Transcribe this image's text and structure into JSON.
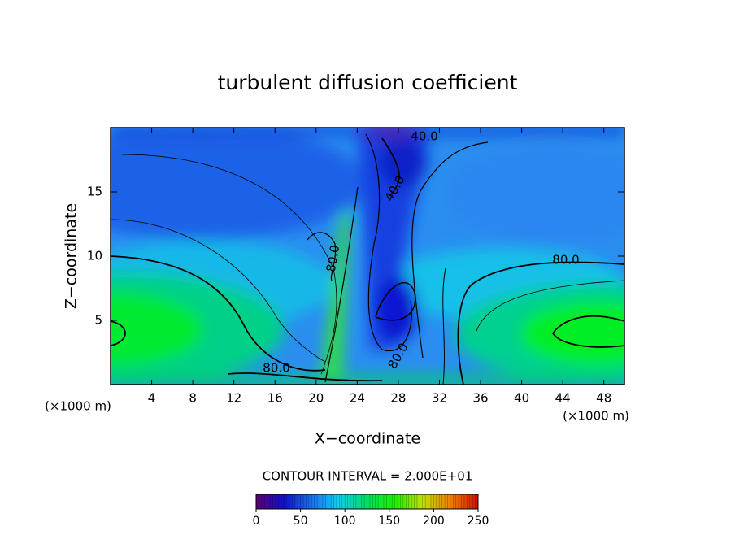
{
  "chart_data": {
    "type": "contour",
    "title": "turbulent diffusion coefficient",
    "x_label": "X−coordinate",
    "y_label": "Z−coordinate",
    "x_unit_left": "(×1000 m)",
    "x_unit_right": "(×1000 m)",
    "xlim": [
      0,
      50
    ],
    "xticks": [
      4,
      8,
      12,
      16,
      20,
      24,
      28,
      32,
      36,
      40,
      44,
      48
    ],
    "ylim": [
      0,
      20
    ],
    "yticks": [
      5,
      10,
      15
    ],
    "contour_labels": [
      {
        "value": 80,
        "label": "80.0"
      },
      {
        "value": 80,
        "label": "80.0"
      },
      {
        "value": 80,
        "label": "80.0"
      },
      {
        "value": 80,
        "label": "80.0"
      },
      {
        "value": 40,
        "label": "40.0"
      },
      {
        "value": 40,
        "label": "40.0"
      }
    ],
    "contour_interval": "CONTOUR INTERVAL = 2.000E+01",
    "colorbar": {
      "lim": [
        0,
        250
      ],
      "ticks": [
        0,
        50,
        100,
        150,
        200,
        250
      ],
      "colors": [
        "#5a0070",
        "#1010d0",
        "#1a70f0",
        "#10d0f0",
        "#00e060",
        "#20f000",
        "#c0e000",
        "#f08000",
        "#d01000"
      ]
    }
  }
}
